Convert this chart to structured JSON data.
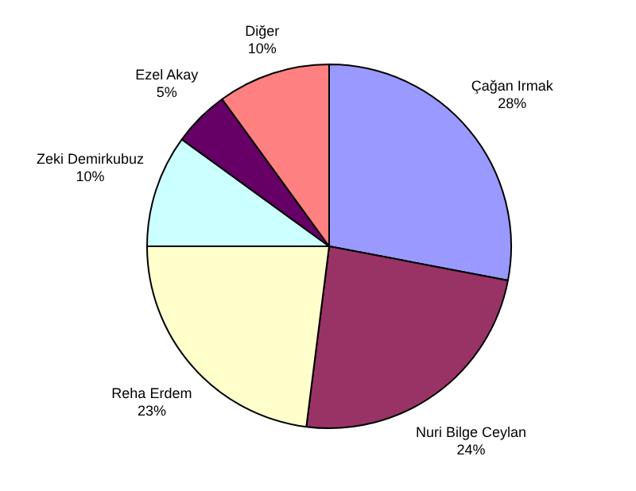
{
  "chart_data": {
    "type": "pie",
    "categories": [
      "Çağan Irmak",
      "Nuri Bilge Ceylan",
      "Reha Erdem",
      "Zeki Demirkubuz",
      "Ezel Akay",
      "Diğer"
    ],
    "values": [
      28,
      24,
      23,
      10,
      5,
      10
    ],
    "colors": [
      "#9999ff",
      "#993366",
      "#ffffcc",
      "#ccffff",
      "#660066",
      "#ff8080"
    ],
    "value_labels": [
      "28%",
      "24%",
      "23%",
      "10%",
      "5%",
      "10%"
    ],
    "legend": false
  }
}
